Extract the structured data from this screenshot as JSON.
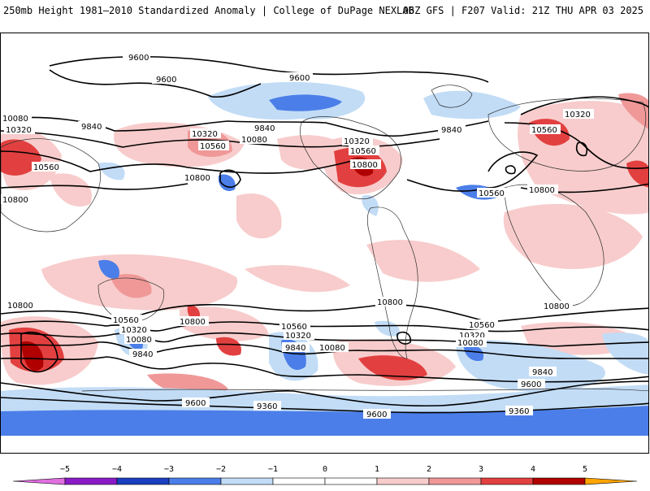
{
  "header": {
    "title_left": "250mb Height 1981–2010 Standardized Anomaly | College of DuPage NEXLAB",
    "title_right": "06Z GFS | F207 Valid: 21Z THU APR 03 2025"
  },
  "colors": {
    "neg5": "#e070e0",
    "neg4": "#8a1ac8",
    "neg3": "#1a3fc0",
    "neg2": "#4b7ee8",
    "neg1": "#c2dcf6",
    "zero": "#ffffff",
    "pos1": "#f8cccc",
    "pos2": "#f09898",
    "pos3": "#e24040",
    "pos4": "#b00000",
    "pos5": "#ffa500",
    "contour": "#000000",
    "border": "#303030"
  },
  "colorbar": {
    "ticks": [
      "−5",
      "−4",
      "−3",
      "−2",
      "−1",
      "0",
      "1",
      "2",
      "3",
      "4",
      "5"
    ]
  },
  "contour_labels": [
    "9600",
    "9600",
    "9600",
    "9840",
    "9840",
    "9840",
    "10080",
    "10320",
    "10560",
    "10320",
    "10560",
    "10800",
    "10080",
    "10320",
    "10560",
    "10800",
    "10800",
    "10560",
    "10800",
    "10320",
    "10560",
    "10800",
    "10800",
    "10800",
    "10560",
    "10320",
    "10080",
    "9840",
    "10800",
    "10560",
    "10320",
    "9840",
    "10080",
    "10560",
    "10320",
    "10080",
    "9840",
    "9600",
    "9600",
    "9360",
    "9600",
    "9360"
  ]
}
